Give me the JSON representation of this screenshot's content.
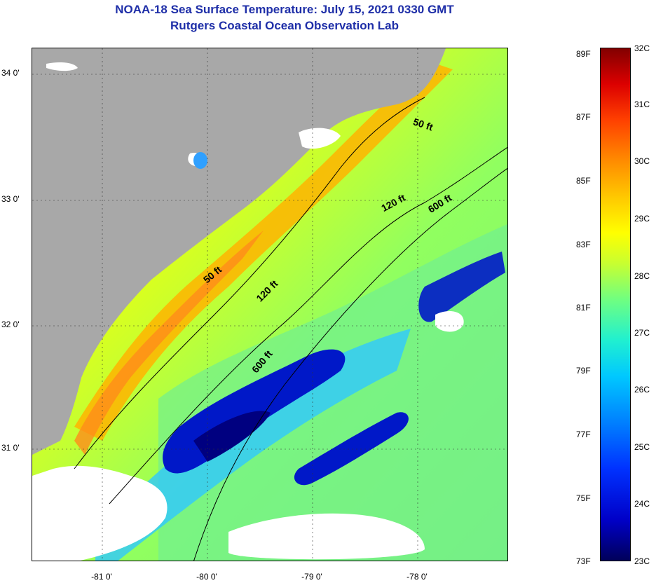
{
  "header": {
    "title": "NOAA-18 Sea Surface Temperature:  July 15, 2021 0330 GMT",
    "subtitle": "Rutgers Coastal Ocean Observation Lab"
  },
  "map": {
    "lat_ticks": [
      "34 0'",
      "33 0'",
      "32 0'",
      "31 0'"
    ],
    "lon_ticks": [
      "-81 0'",
      "-80 0'",
      "-79 0'",
      "-78 0'"
    ],
    "contour_labels": [
      {
        "text": "50 ft",
        "id": "contour-50-north"
      },
      {
        "text": "120 ft",
        "id": "contour-120-north"
      },
      {
        "text": "600 ft",
        "id": "contour-600-north"
      },
      {
        "text": "50 ft",
        "id": "contour-50-south"
      },
      {
        "text": "120 ft",
        "id": "contour-120-south"
      },
      {
        "text": "600 ft",
        "id": "contour-600-south"
      }
    ],
    "colors": {
      "land": "#a8a8a8",
      "cloud": "#ffffff",
      "warm": "#ff8c1a",
      "mid": "#c8ff30",
      "cool": "#30d8e8",
      "cold": "#0018c8",
      "deep": "#000080"
    }
  },
  "colorbar": {
    "fahrenheit": [
      "89F",
      "87F",
      "85F",
      "83F",
      "81F",
      "79F",
      "77F",
      "75F",
      "73F"
    ],
    "celsius": [
      "32C",
      "31C",
      "30C",
      "29C",
      "28C",
      "27C",
      "26C",
      "25C",
      "24C",
      "23C"
    ]
  }
}
